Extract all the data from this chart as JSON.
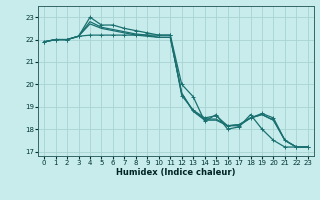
{
  "xlabel": "Humidex (Indice chaleur)",
  "bg_color": "#c8ecec",
  "grid_color": "#a8d4d4",
  "line_color": "#1a7070",
  "xlim": [
    -0.5,
    23.5
  ],
  "ylim": [
    16.8,
    23.5
  ],
  "x_ticks": [
    0,
    1,
    2,
    3,
    4,
    5,
    6,
    7,
    8,
    9,
    10,
    11,
    12,
    13,
    14,
    15,
    16,
    17,
    18,
    19,
    20,
    21,
    22,
    23
  ],
  "y_ticks": [
    17,
    18,
    19,
    20,
    21,
    22,
    23
  ],
  "series": [
    {
      "x": [
        0,
        1,
        2,
        3,
        4,
        5,
        6,
        7,
        8,
        9,
        10,
        11,
        12,
        13,
        14,
        15,
        16,
        17,
        18,
        19,
        20,
        21,
        22,
        23
      ],
      "y": [
        21.9,
        22.0,
        22.0,
        22.15,
        22.2,
        22.2,
        22.2,
        22.2,
        22.2,
        22.2,
        22.2,
        22.2,
        20.0,
        19.45,
        18.35,
        18.65,
        18.0,
        18.1,
        18.65,
        18.0,
        17.5,
        17.2,
        17.2,
        17.2
      ],
      "marker": true
    },
    {
      "x": [
        0,
        1,
        2,
        3,
        4,
        5,
        6,
        7,
        8,
        9,
        10,
        11,
        12,
        13,
        14,
        15,
        16,
        17,
        18,
        19,
        20,
        21,
        22,
        23
      ],
      "y": [
        21.9,
        22.0,
        22.0,
        22.15,
        22.7,
        22.5,
        22.4,
        22.3,
        22.2,
        22.15,
        22.1,
        22.1,
        19.6,
        18.8,
        18.4,
        18.4,
        18.15,
        18.2,
        18.5,
        18.65,
        18.4,
        17.5,
        17.2,
        17.2
      ],
      "marker": false
    },
    {
      "x": [
        0,
        1,
        2,
        3,
        4,
        5,
        6,
        7,
        8,
        9,
        10,
        11,
        12,
        13,
        14,
        15,
        16,
        17,
        18,
        19,
        20,
        21,
        22,
        23
      ],
      "y": [
        21.9,
        22.0,
        22.0,
        22.15,
        22.8,
        22.55,
        22.45,
        22.35,
        22.25,
        22.2,
        22.1,
        22.1,
        19.6,
        18.8,
        18.45,
        18.45,
        18.15,
        18.2,
        18.5,
        18.65,
        18.4,
        17.5,
        17.2,
        17.2
      ],
      "marker": false
    },
    {
      "x": [
        0,
        1,
        2,
        3,
        4,
        5,
        6,
        7,
        8,
        9,
        10,
        11,
        12,
        13,
        14,
        15,
        16,
        17,
        18,
        19,
        20,
        21,
        22,
        23
      ],
      "y": [
        21.9,
        22.0,
        22.0,
        22.15,
        23.0,
        22.65,
        22.65,
        22.5,
        22.4,
        22.3,
        22.2,
        22.2,
        19.5,
        18.85,
        18.5,
        18.6,
        18.15,
        18.15,
        18.5,
        18.7,
        18.5,
        17.5,
        17.2,
        17.2
      ],
      "marker": true
    }
  ]
}
